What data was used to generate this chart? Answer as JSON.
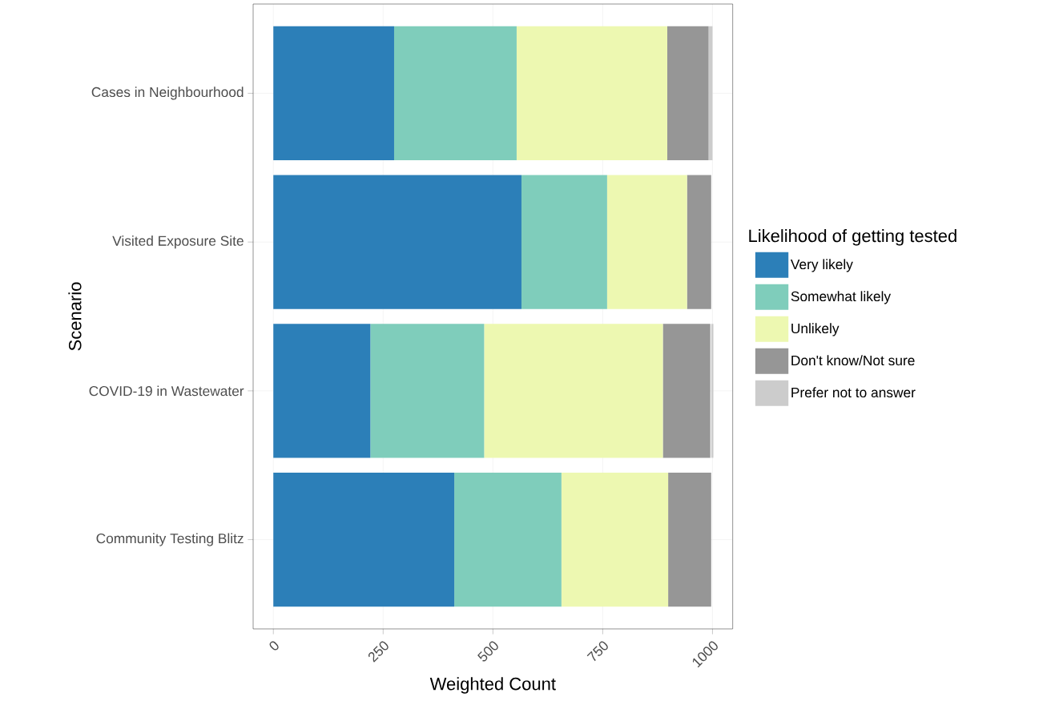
{
  "chart_data": {
    "type": "bar",
    "orientation": "horizontal",
    "stacked": true,
    "xlabel": "Weighted Count",
    "ylabel": "Scenario",
    "legend_title": "Likelihood of getting tested",
    "categories": [
      "Cases in Neighbourhood",
      "Visited Exposure Site",
      "COVID-19 in Wastewater",
      "Community Testing Blitz"
    ],
    "series": [
      {
        "name": "Very likely",
        "color": "#2c7fb8",
        "values": [
          275,
          565,
          221,
          412
        ]
      },
      {
        "name": "Somewhat likely",
        "color": "#7fcdbb",
        "values": [
          279,
          195,
          259,
          244
        ]
      },
      {
        "name": "Unlikely",
        "color": "#edf8b1",
        "values": [
          343,
          182,
          407,
          243
        ]
      },
      {
        "name": "Don't know/Not sure",
        "color": "#969696",
        "values": [
          94,
          55,
          108,
          98
        ]
      },
      {
        "name": "Prefer not to answer",
        "color": "#cccccc",
        "values": [
          9,
          null,
          5,
          null
        ]
      }
    ],
    "xlim": [
      -46,
      1046
    ],
    "xticks": [
      0,
      250,
      500,
      750,
      1000
    ],
    "grid": true,
    "legend": "right"
  }
}
